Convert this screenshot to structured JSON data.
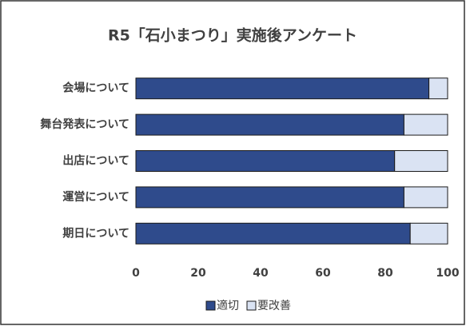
{
  "chart_data": {
    "type": "bar",
    "horizontal": true,
    "stacked": true,
    "title": "R5「石小まつり」実施後アンケート",
    "categories": [
      "会場について",
      "舞台発表について",
      "出店について",
      "運営について",
      "期日について"
    ],
    "series": [
      {
        "name": "適切",
        "color": "#2f4b8c",
        "values": [
          94,
          86,
          83,
          86,
          88
        ]
      },
      {
        "name": "要改善",
        "color": "#dae3f3",
        "values": [
          6,
          14,
          17,
          14,
          12
        ]
      }
    ],
    "xlim": [
      0,
      100
    ],
    "xticks": [
      0,
      20,
      40,
      60,
      80,
      100
    ],
    "legend": "bottom"
  }
}
